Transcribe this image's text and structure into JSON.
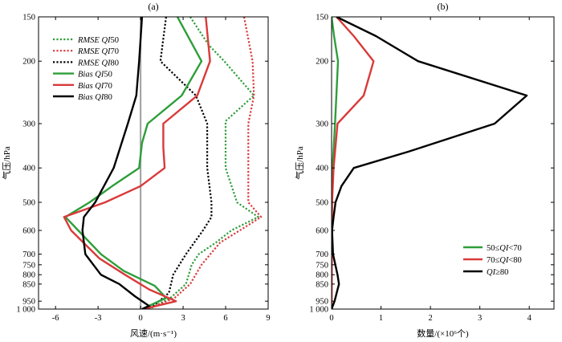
{
  "chart_data": [
    {
      "type": "line",
      "panel_label": "(a)",
      "xlabel": "风速/(m·s⁻¹)",
      "ylabel": "气压/hPa",
      "y_scale": "log",
      "y_reversed": true,
      "xlim": [
        -7.2,
        9.0
      ],
      "ylim": [
        150,
        1000
      ],
      "x_ticks": [
        -6,
        -3,
        0,
        3,
        6,
        9
      ],
      "x_tick_labels": [
        "-6",
        "-3",
        "0",
        "3",
        "6",
        "9"
      ],
      "y_ticks": [
        150,
        200,
        300,
        400,
        500,
        600,
        700,
        750,
        800,
        850,
        950,
        1000
      ],
      "y_tick_labels": [
        "150",
        "200",
        "300",
        "400",
        "500",
        "600",
        "700",
        "750",
        "800",
        "850",
        "950",
        "1 000"
      ],
      "zero_line": {
        "x": 0,
        "color": "#a0a0a0"
      },
      "legend_position": "upper-left",
      "series": [
        {
          "name": "RMSE QI50",
          "name_italic": "RMSE QI",
          "name_suffix": "50",
          "color": "#2e9e3a",
          "dash": "dotted",
          "points": [
            [
              3.5,
              150
            ],
            [
              4.8,
              180
            ],
            [
              5.9,
              200
            ],
            [
              8.0,
              250
            ],
            [
              6.0,
              295
            ],
            [
              6.0,
              400
            ],
            [
              6.8,
              500
            ],
            [
              8.3,
              550
            ],
            [
              6.4,
              600
            ],
            [
              5.3,
              650
            ],
            [
              4.1,
              700
            ],
            [
              3.6,
              750
            ],
            [
              3.4,
              800
            ],
            [
              3.2,
              850
            ],
            [
              2.1,
              930
            ],
            [
              0.6,
              1000
            ]
          ]
        },
        {
          "name": "RMSE QI70",
          "name_italic": "RMSE QI",
          "name_suffix": "70",
          "color": "#d93a3a",
          "dash": "dotted",
          "points": [
            [
              7.3,
              150
            ],
            [
              7.9,
              200
            ],
            [
              8.0,
              250
            ],
            [
              7.6,
              300
            ],
            [
              7.6,
              400
            ],
            [
              7.6,
              500
            ],
            [
              8.5,
              550
            ],
            [
              7.0,
              600
            ],
            [
              5.6,
              650
            ],
            [
              4.3,
              750
            ],
            [
              3.5,
              850
            ],
            [
              2.4,
              930
            ],
            [
              0.5,
              1000
            ]
          ]
        },
        {
          "name": "RMSE QI80",
          "name_italic": "RMSE QI",
          "name_suffix": "80",
          "color": "#000000",
          "dash": "dotted",
          "points": [
            [
              1.8,
              150
            ],
            [
              1.4,
              200
            ],
            [
              3.9,
              250
            ],
            [
              4.7,
              300
            ],
            [
              4.7,
              400
            ],
            [
              5.0,
              500
            ],
            [
              5.0,
              550
            ],
            [
              4.4,
              600
            ],
            [
              3.2,
              700
            ],
            [
              2.3,
              800
            ],
            [
              2.0,
              900
            ],
            [
              0.9,
              980
            ],
            [
              0.1,
              1000
            ]
          ]
        },
        {
          "name": "Bias QI50",
          "name_italic": "Bias QI",
          "name_suffix": "50",
          "color": "#2e9e3a",
          "dash": "solid",
          "points": [
            [
              2.6,
              150
            ],
            [
              4.3,
              200
            ],
            [
              2.9,
              250
            ],
            [
              0.5,
              300
            ],
            [
              0.1,
              340
            ],
            [
              -0.1,
              400
            ],
            [
              -2.0,
              450
            ],
            [
              -3.6,
              500
            ],
            [
              -5.3,
              550
            ],
            [
              -4.4,
              600
            ],
            [
              -2.8,
              700
            ],
            [
              -1.2,
              780
            ],
            [
              1.0,
              860
            ],
            [
              1.8,
              930
            ],
            [
              0.1,
              1000
            ]
          ]
        },
        {
          "name": "Bias QI70",
          "name_italic": "Bias QI",
          "name_suffix": "70",
          "color": "#d93a3a",
          "dash": "solid",
          "points": [
            [
              4.6,
              150
            ],
            [
              4.9,
              200
            ],
            [
              4.0,
              250
            ],
            [
              1.6,
              300
            ],
            [
              1.6,
              350
            ],
            [
              1.7,
              400
            ],
            [
              0.0,
              450
            ],
            [
              -2.5,
              500
            ],
            [
              -5.4,
              550
            ],
            [
              -4.9,
              600
            ],
            [
              -2.9,
              720
            ],
            [
              -1.1,
              800
            ],
            [
              0.6,
              880
            ],
            [
              2.5,
              950
            ],
            [
              0.2,
              1000
            ]
          ]
        },
        {
          "name": "Bias QI80",
          "name_italic": "Bias QI",
          "name_suffix": "80",
          "color": "#000000",
          "dash": "solid",
          "points": [
            [
              0.1,
              150
            ],
            [
              -0.1,
              200
            ],
            [
              -0.3,
              250
            ],
            [
              -0.9,
              300
            ],
            [
              -1.9,
              400
            ],
            [
              -3.2,
              500
            ],
            [
              -4.0,
              550
            ],
            [
              -4.1,
              600
            ],
            [
              -3.9,
              700
            ],
            [
              -2.8,
              800
            ],
            [
              -1.5,
              850
            ],
            [
              -0.4,
              920
            ],
            [
              0.6,
              980
            ],
            [
              0.1,
              1000
            ]
          ]
        }
      ]
    },
    {
      "type": "line",
      "panel_label": "(b)",
      "xlabel": "数量/(×10⁶个)",
      "ylabel": "气压/hPa",
      "y_scale": "log",
      "y_reversed": true,
      "xlim": [
        0,
        4.5
      ],
      "ylim": [
        150,
        1000
      ],
      "x_ticks": [
        0,
        1,
        2,
        3,
        4
      ],
      "x_tick_labels": [
        "0",
        "1",
        "2",
        "3",
        "4"
      ],
      "y_ticks": [
        150,
        200,
        300,
        400,
        500,
        600,
        700,
        750,
        800,
        850,
        950,
        1000
      ],
      "y_tick_labels": [
        "150",
        "200",
        "300",
        "400",
        "500",
        "600",
        "700",
        "750",
        "800",
        "850",
        "950",
        "1 000"
      ],
      "legend_position": "lower-right",
      "series": [
        {
          "name": "50≤QI<70",
          "name_pre": "50≤",
          "name_italic": "QI",
          "name_post": "<70",
          "color": "#2e9e3a",
          "points": [
            [
              0.0,
              150
            ],
            [
              0.05,
              170
            ],
            [
              0.13,
              200
            ],
            [
              0.07,
              300
            ],
            [
              0.02,
              400
            ],
            [
              0.01,
              500
            ],
            [
              0.0,
              1000
            ]
          ]
        },
        {
          "name": "70≤QI<80",
          "name_pre": "70≤",
          "name_italic": "QI",
          "name_post": "<80",
          "color": "#d93a3a",
          "points": [
            [
              0.1,
              150
            ],
            [
              0.45,
              170
            ],
            [
              0.85,
              200
            ],
            [
              0.65,
              250
            ],
            [
              0.12,
              300
            ],
            [
              0.04,
              400
            ],
            [
              0.01,
              500
            ],
            [
              0.0,
              1000
            ]
          ]
        },
        {
          "name": "QI≥80",
          "name_pre": "",
          "name_italic": "QI",
          "name_post": "≥80",
          "color": "#000000",
          "points": [
            [
              0.1,
              150
            ],
            [
              0.9,
              170
            ],
            [
              1.75,
              200
            ],
            [
              3.95,
              250
            ],
            [
              3.3,
              300
            ],
            [
              1.55,
              360
            ],
            [
              0.45,
              400
            ],
            [
              0.2,
              450
            ],
            [
              0.08,
              500
            ],
            [
              0.04,
              550
            ],
            [
              0.01,
              600
            ],
            [
              0.03,
              700
            ],
            [
              0.12,
              800
            ],
            [
              0.15,
              850
            ],
            [
              0.06,
              950
            ],
            [
              0.0,
              1000
            ]
          ]
        }
      ]
    }
  ]
}
